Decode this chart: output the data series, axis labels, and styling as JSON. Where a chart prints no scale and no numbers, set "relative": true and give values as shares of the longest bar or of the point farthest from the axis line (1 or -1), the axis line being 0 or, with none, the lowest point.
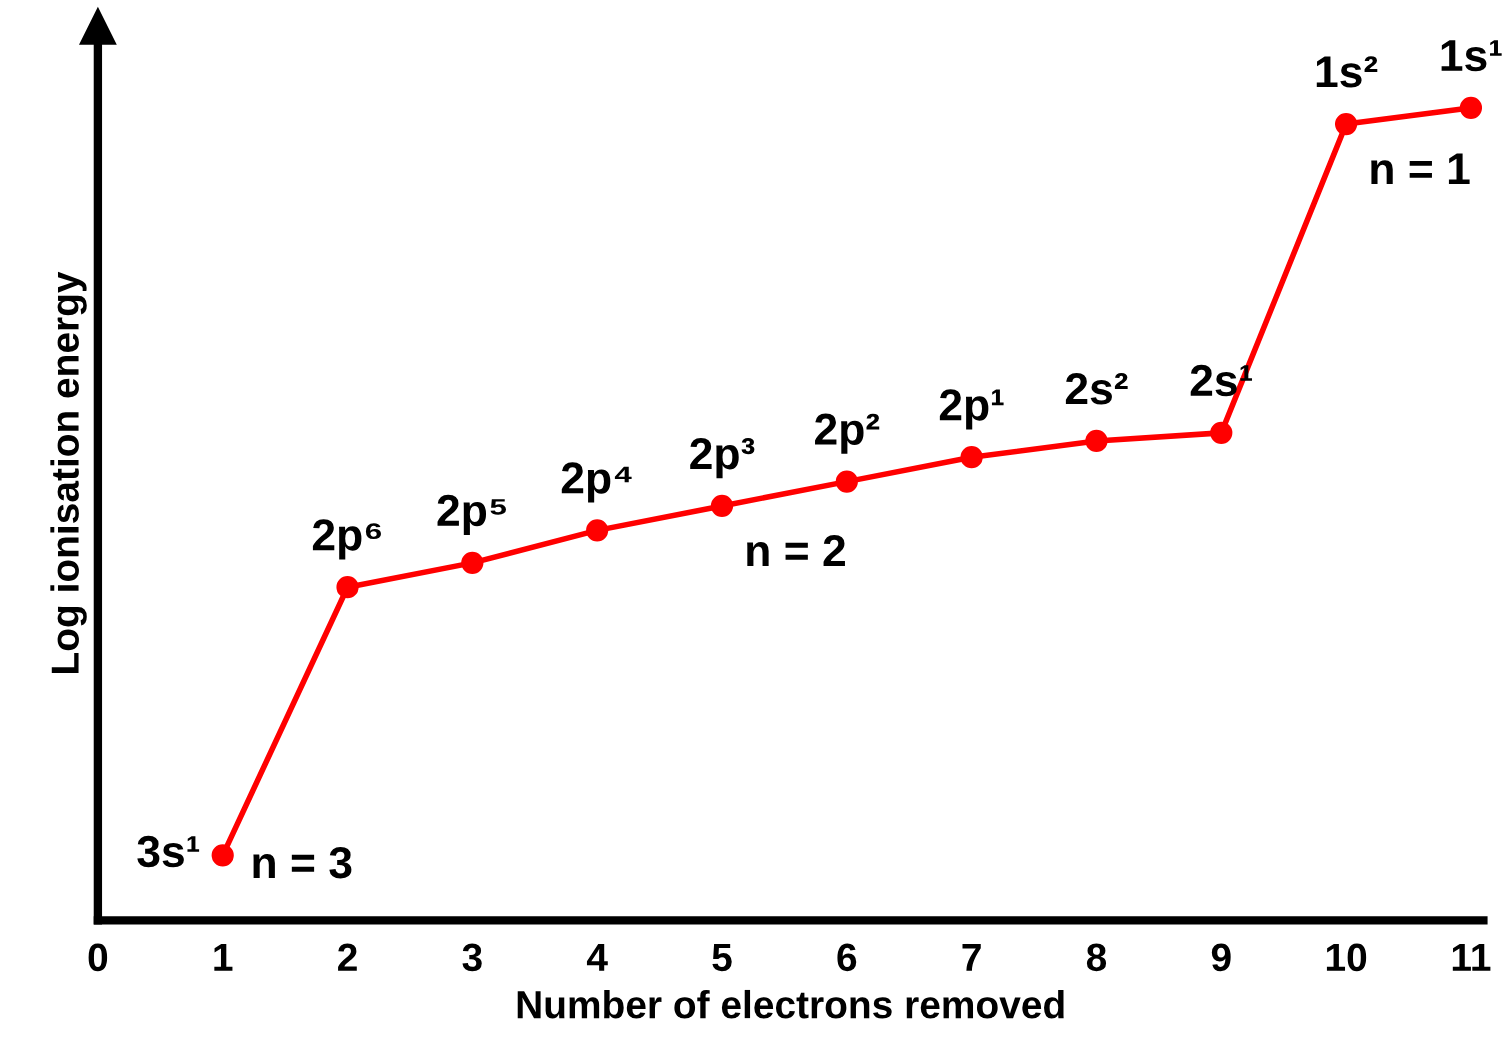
{
  "chart_data": {
    "type": "line",
    "relative": true,
    "xlabel": "Number of electrons removed",
    "ylabel": "Log ionisation energy",
    "x": [
      1,
      2,
      3,
      4,
      5,
      6,
      7,
      8,
      9,
      10,
      11
    ],
    "xlim": [
      0,
      11.1
    ],
    "xticks": [
      0,
      1,
      2,
      3,
      4,
      5,
      6,
      7,
      8,
      9,
      10,
      11
    ],
    "tick_labels": "x",
    "grid": false,
    "legend": false,
    "marker": "circle",
    "line_style": "solid",
    "series": [
      {
        "color": "#ff0000",
        "values": [
          0.08,
          0.41,
          0.44,
          0.48,
          0.51,
          0.54,
          0.57,
          0.59,
          0.6,
          0.98,
          1.0
        ]
      }
    ],
    "annotations": [
      {
        "text": "3s¹",
        "x": 1,
        "y": 0.08
      },
      {
        "text": "n = 3",
        "x": 1,
        "y": 0.08
      },
      {
        "text": "2p⁶",
        "x": 2,
        "y": 0.41
      },
      {
        "text": "2p⁵",
        "x": 3,
        "y": 0.44
      },
      {
        "text": "2p⁴",
        "x": 4,
        "y": 0.48
      },
      {
        "text": "2p³",
        "x": 5,
        "y": 0.51
      },
      {
        "text": "n = 2",
        "x": 5,
        "y": 0.51
      },
      {
        "text": "2p²",
        "x": 6,
        "y": 0.54
      },
      {
        "text": "2p¹",
        "x": 7,
        "y": 0.57
      },
      {
        "text": "2s²",
        "x": 8,
        "y": 0.59
      },
      {
        "text": "2s¹",
        "x": 9,
        "y": 0.6
      },
      {
        "text": "1s²",
        "x": 10,
        "y": 0.98
      },
      {
        "text": "n = 1",
        "x": 10,
        "y": 0.98
      },
      {
        "text": "1s¹",
        "x": 11,
        "y": 1.0
      }
    ]
  }
}
